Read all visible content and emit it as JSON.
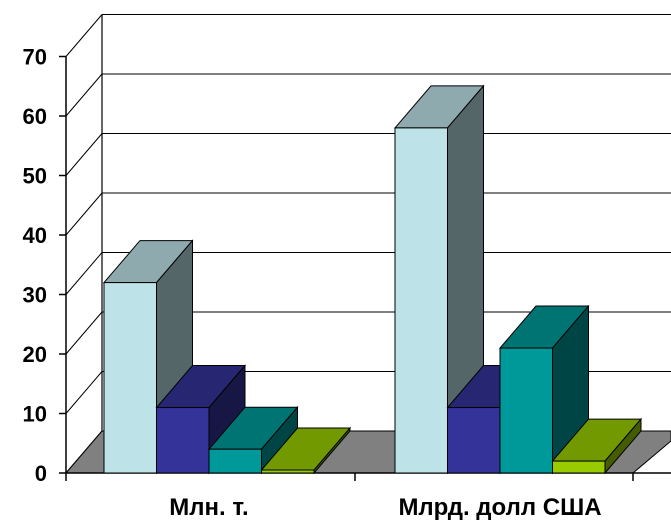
{
  "chart_data": {
    "type": "bar",
    "categories": [
      "Млн. т.",
      "Млрд. долл США"
    ],
    "series": [
      {
        "values": [
          32,
          58
        ],
        "color": "#BDE3E8"
      },
      {
        "values": [
          11,
          11
        ],
        "color": "#333399"
      },
      {
        "values": [
          4,
          21
        ],
        "color": "#009999"
      },
      {
        "values": [
          0.5,
          2
        ],
        "color": "#99CC00"
      }
    ],
    "ylim": [
      0,
      70
    ],
    "yticks": [
      "0",
      "10",
      "20",
      "30",
      "40",
      "50",
      "60",
      "70"
    ],
    "grid": true,
    "floor_color": "#808080"
  }
}
